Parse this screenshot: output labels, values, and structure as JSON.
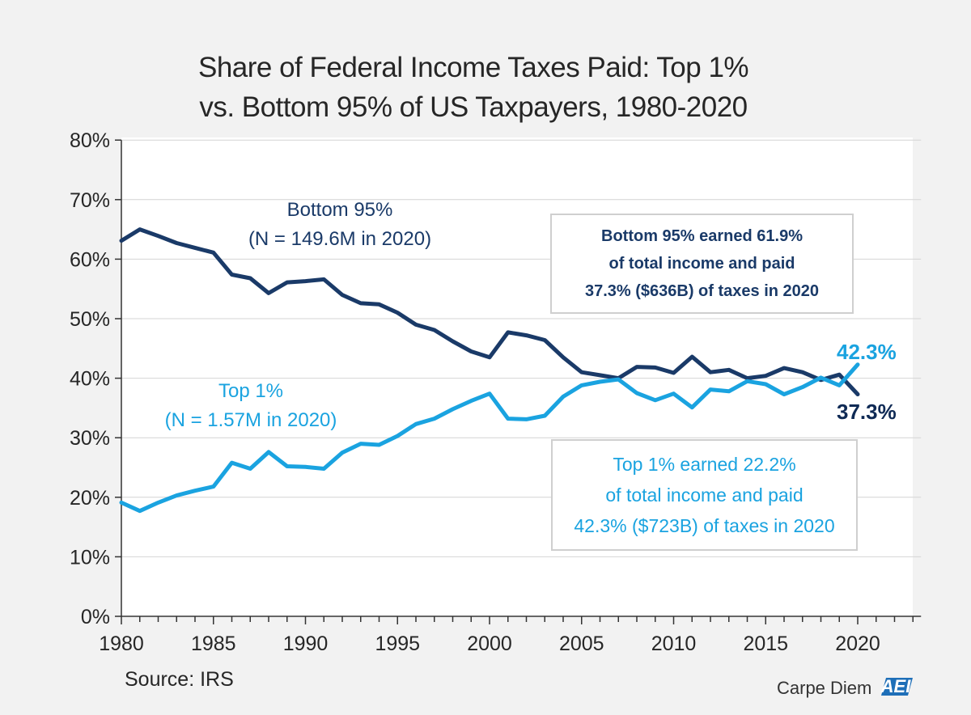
{
  "chart_data": {
    "type": "line",
    "title": "Share of Federal Income Taxes Paid: Top 1% vs. Bottom 95% of US Taxpayers, 1980-2020",
    "title_lines": [
      "Share of Federal Income Taxes Paid: Top 1%",
      "vs. Bottom 95% of US Taxpayers, 1980-2020"
    ],
    "xlabel": "",
    "ylabel": "",
    "xlim": [
      1980,
      2023
    ],
    "ylim": [
      0,
      80
    ],
    "yticks": [
      0,
      10,
      20,
      30,
      40,
      50,
      60,
      70,
      80
    ],
    "ytick_labels": [
      "0%",
      "10%",
      "20%",
      "30%",
      "40%",
      "50%",
      "60%",
      "70%",
      "80%"
    ],
    "xticks": [
      1980,
      1985,
      1990,
      1995,
      2000,
      2005,
      2010,
      2015,
      2020
    ],
    "xtick_labels": [
      "1980",
      "1985",
      "1990",
      "1995",
      "2000",
      "2005",
      "2010",
      "2015",
      "2020"
    ],
    "grid": true,
    "x": [
      1980,
      1981,
      1982,
      1983,
      1984,
      1985,
      1986,
      1987,
      1988,
      1989,
      1990,
      1991,
      1992,
      1993,
      1994,
      1995,
      1996,
      1997,
      1998,
      1999,
      2000,
      2001,
      2002,
      2003,
      2004,
      2005,
      2006,
      2007,
      2008,
      2009,
      2010,
      2011,
      2012,
      2013,
      2014,
      2015,
      2016,
      2017,
      2018,
      2019,
      2020
    ],
    "series": [
      {
        "name": "Bottom 95%",
        "color": "#1a3a68",
        "values": [
          63.1,
          65.0,
          63.9,
          62.7,
          61.9,
          61.1,
          57.4,
          56.8,
          54.3,
          56.1,
          56.3,
          56.6,
          54.0,
          52.6,
          52.4,
          51.0,
          49.0,
          48.1,
          46.2,
          44.5,
          43.5,
          47.7,
          47.2,
          46.4,
          43.5,
          41.0,
          40.5,
          40.0,
          41.9,
          41.8,
          40.9,
          43.6,
          41.0,
          41.4,
          40.0,
          40.4,
          41.7,
          41.0,
          39.7,
          40.6,
          37.3
        ]
      },
      {
        "name": "Top 1%",
        "color": "#1aa3e0",
        "values": [
          19.1,
          17.7,
          19.1,
          20.3,
          21.1,
          21.8,
          25.8,
          24.8,
          27.6,
          25.2,
          25.1,
          24.8,
          27.5,
          29.0,
          28.8,
          30.3,
          32.3,
          33.2,
          34.8,
          36.2,
          37.4,
          33.2,
          33.1,
          33.7,
          36.9,
          38.8,
          39.4,
          39.8,
          37.5,
          36.3,
          37.4,
          35.1,
          38.1,
          37.8,
          39.5,
          39.0,
          37.3,
          38.5,
          40.1,
          38.8,
          42.3
        ]
      }
    ],
    "annotations": {
      "bottom_label": [
        "Bottom 95%",
        "(N = 149.6M in 2020)"
      ],
      "top_label": [
        "Top 1%",
        "(N = 1.57M in 2020)"
      ],
      "bottom_box": [
        "Bottom 95% earned 61.9%",
        "of total income and paid",
        "37.3% ($636B) of taxes in 2020"
      ],
      "top_box": [
        "Top 1% earned 22.2%",
        "of total income and paid",
        "42.3% ($723B) of taxes in 2020"
      ],
      "bottom_end": "37.3%",
      "top_end": "42.3%"
    },
    "source": "Source: IRS",
    "brand_text": "Carpe Diem",
    "logo_text": "AEI"
  }
}
